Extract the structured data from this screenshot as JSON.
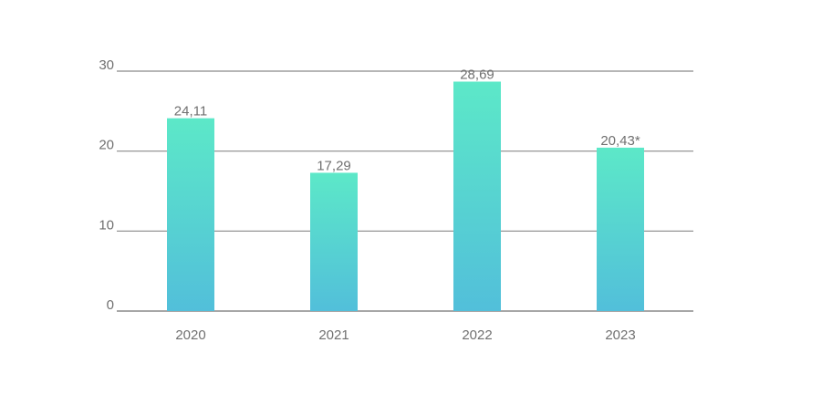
{
  "chart_data": {
    "type": "bar",
    "categories": [
      "2020",
      "2021",
      "2022",
      "2023"
    ],
    "values": [
      24.11,
      17.29,
      28.69,
      20.43
    ],
    "data_labels": [
      "24,11",
      "17,29",
      "28,69",
      "20,43*"
    ],
    "ylim": [
      0,
      30
    ],
    "yticks": [
      0,
      10,
      20,
      30
    ],
    "ytick_labels": [
      "0",
      "10",
      "20",
      "30"
    ],
    "grid": true,
    "legend": "none",
    "colors": {
      "bar_top": "#5CE8C8",
      "bar_bottom": "#52BFDA",
      "gridline": "#8A8A8A",
      "text": "#707070"
    }
  }
}
